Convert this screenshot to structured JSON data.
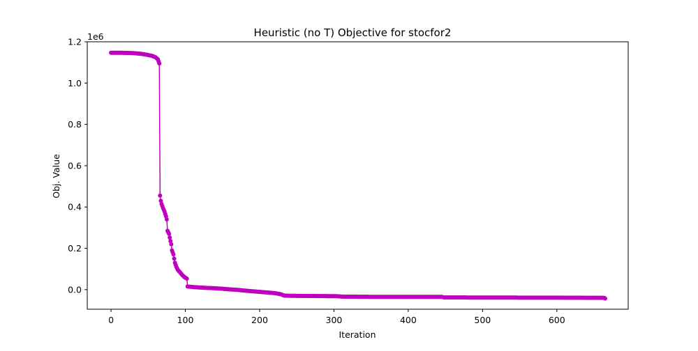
{
  "chart_data": {
    "type": "line",
    "title": "Heuristic (no T) Objective for stocfor2",
    "xlabel": "Iteration",
    "ylabel": "Obj. Value",
    "y_scale_label": "1e6",
    "xlim": [
      -32,
      696
    ],
    "ylim": [
      -95000,
      1200000
    ],
    "x_ticks": [
      0,
      100,
      200,
      300,
      400,
      500,
      600
    ],
    "x_tick_labels": [
      "0",
      "100",
      "200",
      "300",
      "400",
      "500",
      "600"
    ],
    "y_ticks": [
      0,
      200000,
      400000,
      600000,
      800000,
      1000000,
      1200000
    ],
    "y_tick_labels": [
      "0.0",
      "0.2",
      "0.4",
      "0.6",
      "0.8",
      "1.0",
      "1.2"
    ],
    "grid": false,
    "legend": "none",
    "series_color": "#bf00bf",
    "marker": "circle",
    "knots": [
      [
        0,
        1147000
      ],
      [
        10,
        1147000
      ],
      [
        20,
        1146500
      ],
      [
        30,
        1145000
      ],
      [
        40,
        1142000
      ],
      [
        50,
        1136000
      ],
      [
        55,
        1132000
      ],
      [
        60,
        1125000
      ],
      [
        63,
        1115000
      ],
      [
        65,
        1095000
      ],
      [
        66,
        455000
      ],
      [
        67,
        430000
      ],
      [
        68,
        415000
      ],
      [
        70,
        395000
      ],
      [
        72,
        378000
      ],
      [
        74,
        355000
      ],
      [
        75,
        340000
      ],
      [
        76,
        285000
      ],
      [
        78,
        270000
      ],
      [
        80,
        235000
      ],
      [
        81,
        220000
      ],
      [
        82,
        190000
      ],
      [
        84,
        170000
      ],
      [
        86,
        130000
      ],
      [
        88,
        110000
      ],
      [
        90,
        95000
      ],
      [
        93,
        83000
      ],
      [
        96,
        70000
      ],
      [
        99,
        60000
      ],
      [
        102,
        53000
      ],
      [
        103,
        15000
      ],
      [
        110,
        12500
      ],
      [
        120,
        10000
      ],
      [
        130,
        8000
      ],
      [
        140,
        6500
      ],
      [
        150,
        4000
      ],
      [
        160,
        1000
      ],
      [
        170,
        -1000
      ],
      [
        180,
        -5000
      ],
      [
        190,
        -8000
      ],
      [
        200,
        -11000
      ],
      [
        210,
        -14000
      ],
      [
        220,
        -17000
      ],
      [
        228,
        -22000
      ],
      [
        233,
        -29000
      ],
      [
        240,
        -30000
      ],
      [
        270,
        -31000
      ],
      [
        305,
        -32000
      ],
      [
        310,
        -34000
      ],
      [
        350,
        -35000
      ],
      [
        400,
        -35000
      ],
      [
        445,
        -35000
      ],
      [
        448,
        -38000
      ],
      [
        500,
        -38500
      ],
      [
        600,
        -39000
      ],
      [
        664,
        -40000
      ]
    ],
    "last_point": [
      665,
      -43000
    ]
  }
}
